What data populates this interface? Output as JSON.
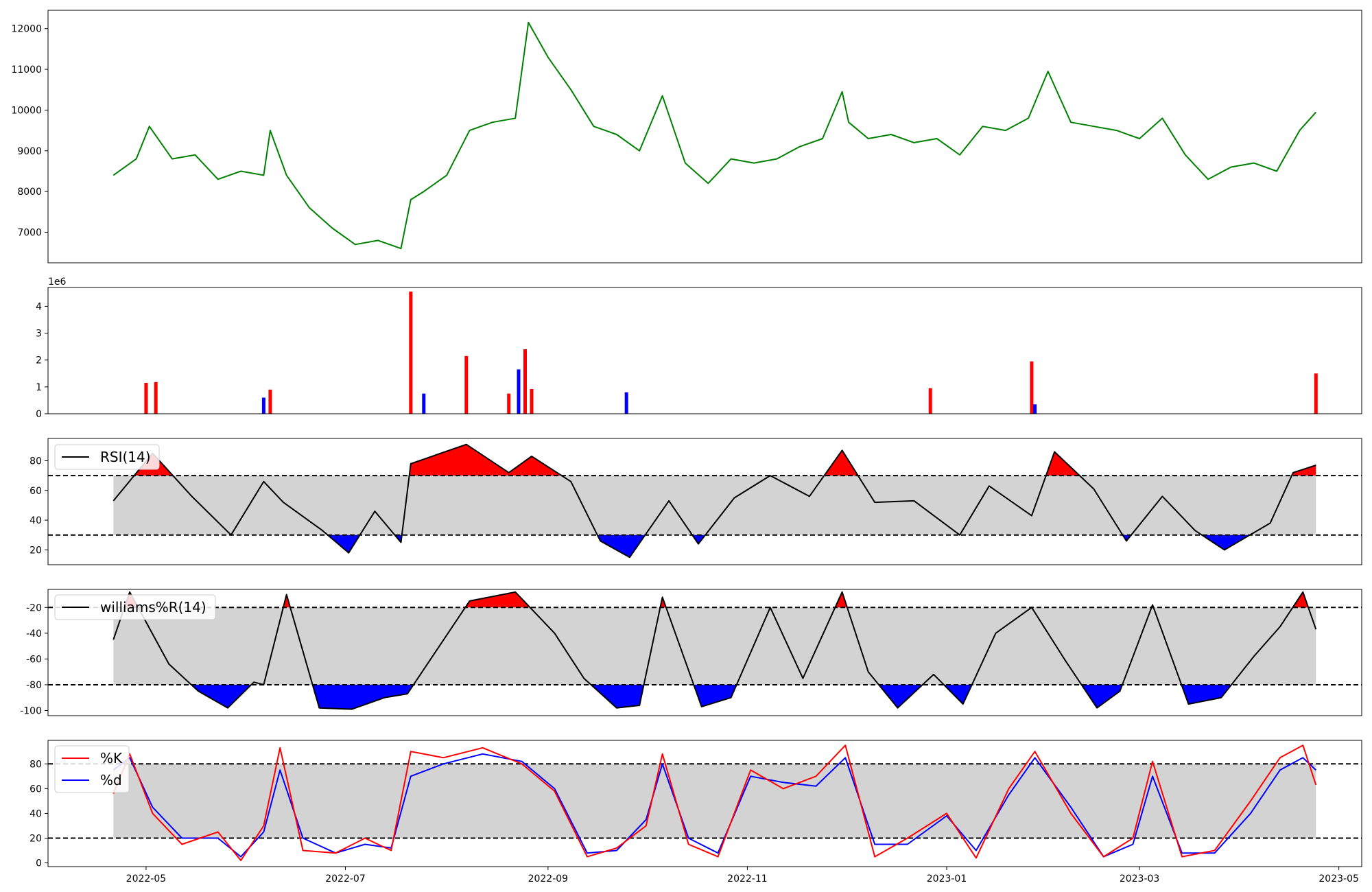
{
  "chart_data": [
    {
      "type": "line",
      "panel": "price",
      "color": "#008000",
      "ylim": [
        6250,
        12450
      ],
      "yticks": [
        "7000",
        "8000",
        "9000",
        "10000",
        "11000",
        "12000"
      ],
      "x": [
        "2022-04-21",
        "2022-04-28",
        "2022-05-02",
        "2022-05-09",
        "2022-05-16",
        "2022-05-23",
        "2022-05-30",
        "2022-06-06",
        "2022-06-08",
        "2022-06-13",
        "2022-06-20",
        "2022-06-27",
        "2022-07-04",
        "2022-07-11",
        "2022-07-18",
        "2022-07-21",
        "2022-07-25",
        "2022-08-01",
        "2022-08-08",
        "2022-08-15",
        "2022-08-22",
        "2022-08-26",
        "2022-09-01",
        "2022-09-08",
        "2022-09-15",
        "2022-09-22",
        "2022-09-29",
        "2022-10-06",
        "2022-10-13",
        "2022-10-20",
        "2022-10-27",
        "2022-11-03",
        "2022-11-10",
        "2022-11-17",
        "2022-11-24",
        "2022-11-30",
        "2022-12-02",
        "2022-12-08",
        "2022-12-15",
        "2022-12-22",
        "2022-12-29",
        "2023-01-05",
        "2023-01-12",
        "2023-01-19",
        "2023-01-26",
        "2023-02-01",
        "2023-02-08",
        "2023-02-15",
        "2023-02-22",
        "2023-03-01",
        "2023-03-08",
        "2023-03-15",
        "2023-03-22",
        "2023-03-29",
        "2023-04-05",
        "2023-04-12",
        "2023-04-19",
        "2023-04-24"
      ],
      "y": [
        8400,
        8800,
        9600,
        8800,
        8900,
        8300,
        8500,
        8400,
        9500,
        8400,
        7600,
        7100,
        6700,
        6800,
        6600,
        7800,
        8000,
        8400,
        9500,
        9700,
        9800,
        12150,
        11300,
        10500,
        9600,
        9400,
        9000,
        10350,
        8700,
        8200,
        8800,
        8700,
        8800,
        9100,
        9300,
        10450,
        9700,
        9300,
        9400,
        9200,
        9300,
        8900,
        9600,
        9500,
        9800,
        10950,
        9700,
        9600,
        9500,
        9300,
        9800,
        8900,
        8300,
        8600,
        8700,
        8500,
        9500,
        9950
      ]
    },
    {
      "type": "bar",
      "panel": "volume",
      "multiplier_label": "1e6",
      "ylim": [
        0,
        4.7
      ],
      "yticks": [
        "0",
        "1",
        "2",
        "3",
        "4"
      ],
      "x": [
        "2022-05-01",
        "2022-05-04",
        "2022-06-06",
        "2022-06-08",
        "2022-07-21",
        "2022-07-25",
        "2022-08-07",
        "2022-08-20",
        "2022-08-23",
        "2022-08-25",
        "2022-08-27",
        "2022-09-25",
        "2022-12-27",
        "2023-01-27",
        "2023-01-28",
        "2023-04-24"
      ],
      "values": [
        1.15,
        1.18,
        0.6,
        0.9,
        4.55,
        0.75,
        2.15,
        0.75,
        1.65,
        2.4,
        0.92,
        0.8,
        0.95,
        1.95,
        0.35,
        1.5
      ],
      "up_color": "#ff0000",
      "down_color": "#0000ff"
    },
    {
      "type": "line",
      "panel": "rsi",
      "legend": [
        "RSI(14)"
      ],
      "ylim": [
        10,
        95
      ],
      "yticks": [
        "20",
        "40",
        "60",
        "80"
      ],
      "thresholds": [
        30,
        70
      ],
      "band_color": "#d3d3d3",
      "overbought_color": "#ff0000",
      "oversold_color": "#0000ff",
      "x": [
        "2022-04-21",
        "2022-05-03",
        "2022-05-15",
        "2022-05-27",
        "2022-06-06",
        "2022-06-12",
        "2022-06-24",
        "2022-07-02",
        "2022-07-10",
        "2022-07-18",
        "2022-07-21",
        "2022-08-07",
        "2022-08-20",
        "2022-08-27",
        "2022-09-08",
        "2022-09-17",
        "2022-09-26",
        "2022-10-08",
        "2022-10-17",
        "2022-10-28",
        "2022-11-08",
        "2022-11-20",
        "2022-11-30",
        "2022-12-10",
        "2022-12-22",
        "2023-01-05",
        "2023-01-14",
        "2023-01-27",
        "2023-02-03",
        "2023-02-15",
        "2023-02-25",
        "2023-03-08",
        "2023-03-18",
        "2023-03-27",
        "2023-04-10",
        "2023-04-17",
        "2023-04-24"
      ],
      "y": [
        53,
        85,
        56,
        30,
        66,
        52,
        33,
        18,
        46,
        25,
        78,
        91,
        72,
        83,
        66,
        26,
        15,
        53,
        24,
        55,
        70,
        56,
        87,
        52,
        53,
        30,
        63,
        43,
        86,
        61,
        26,
        56,
        33,
        20,
        38,
        72,
        77
      ]
    },
    {
      "type": "line",
      "panel": "williams",
      "legend": [
        "williams%R(14)"
      ],
      "ylim": [
        -104,
        -6
      ],
      "yticks": [
        "-20",
        "-40",
        "-60",
        "-80",
        "-100"
      ],
      "thresholds": [
        -20,
        -80
      ],
      "band_color": "#d3d3d3",
      "overbought_color": "#ff0000",
      "oversold_color": "#0000ff",
      "x": [
        "2022-04-21",
        "2022-04-26",
        "2022-05-08",
        "2022-05-17",
        "2022-05-26",
        "2022-06-03",
        "2022-06-06",
        "2022-06-13",
        "2022-06-23",
        "2022-07-03",
        "2022-07-13",
        "2022-07-20",
        "2022-08-08",
        "2022-08-22",
        "2022-09-03",
        "2022-09-12",
        "2022-09-22",
        "2022-09-29",
        "2022-10-06",
        "2022-10-18",
        "2022-10-27",
        "2022-11-08",
        "2022-11-18",
        "2022-11-30",
        "2022-12-08",
        "2022-12-17",
        "2022-12-28",
        "2023-01-06",
        "2023-01-16",
        "2023-01-27",
        "2023-02-06",
        "2023-02-16",
        "2023-02-23",
        "2023-03-05",
        "2023-03-16",
        "2023-03-26",
        "2023-04-05",
        "2023-04-13",
        "2023-04-20",
        "2023-04-24"
      ],
      "y": [
        -45,
        -8,
        -64,
        -85,
        -98,
        -78,
        -80,
        -10,
        -98,
        -99,
        -90,
        -87,
        -15,
        -8,
        -40,
        -75,
        -98,
        -96,
        -12,
        -97,
        -90,
        -20,
        -75,
        -8,
        -70,
        -98,
        -72,
        -95,
        -40,
        -20,
        -60,
        -98,
        -85,
        -18,
        -95,
        -90,
        -58,
        -35,
        -8,
        -37
      ]
    },
    {
      "type": "line",
      "panel": "stochastic",
      "legend": [
        "%K",
        "%d"
      ],
      "ylim": [
        -3,
        99
      ],
      "yticks": [
        "0",
        "20",
        "40",
        "60",
        "80"
      ],
      "thresholds": [
        20,
        80
      ],
      "band_color": "#d3d3d3",
      "x": [
        "2022-04-21",
        "2022-04-26",
        "2022-05-03",
        "2022-05-12",
        "2022-05-23",
        "2022-05-30",
        "2022-06-06",
        "2022-06-11",
        "2022-06-18",
        "2022-06-28",
        "2022-07-07",
        "2022-07-15",
        "2022-07-21",
        "2022-07-31",
        "2022-08-12",
        "2022-08-24",
        "2022-09-03",
        "2022-09-13",
        "2022-09-22",
        "2022-10-01",
        "2022-10-06",
        "2022-10-14",
        "2022-10-23",
        "2022-11-02",
        "2022-11-12",
        "2022-11-22",
        "2022-12-01",
        "2022-12-10",
        "2022-12-20",
        "2023-01-01",
        "2023-01-10",
        "2023-01-20",
        "2023-01-28",
        "2023-02-08",
        "2023-02-18",
        "2023-02-27",
        "2023-03-05",
        "2023-03-14",
        "2023-03-24",
        "2023-04-04",
        "2023-04-13",
        "2023-04-20",
        "2023-04-24"
      ],
      "k": [
        56,
        88,
        40,
        15,
        25,
        2,
        30,
        93,
        10,
        8,
        20,
        10,
        90,
        85,
        93,
        80,
        58,
        5,
        12,
        30,
        88,
        15,
        5,
        75,
        60,
        70,
        95,
        5,
        20,
        40,
        4,
        60,
        90,
        40,
        5,
        20,
        82,
        5,
        10,
        50,
        85,
        95,
        63
      ],
      "d": [
        75,
        85,
        45,
        20,
        20,
        5,
        25,
        75,
        20,
        8,
        15,
        12,
        70,
        80,
        88,
        82,
        60,
        8,
        10,
        35,
        80,
        20,
        8,
        70,
        65,
        62,
        85,
        15,
        15,
        38,
        10,
        55,
        85,
        45,
        5,
        15,
        70,
        8,
        8,
        40,
        75,
        85,
        75
      ],
      "k_color": "#ff0000",
      "d_color": "#0000ff"
    }
  ],
  "x_axis": {
    "tick_labels": [
      "2022-05",
      "2022-07",
      "2022-09",
      "2022-11",
      "2023-01",
      "2023-03",
      "2023-05"
    ],
    "tick_dates": [
      "2022-05-01",
      "2022-07-01",
      "2022-09-01",
      "2022-11-01",
      "2023-01-01",
      "2023-03-01",
      "2023-05-01"
    ],
    "xlim": [
      "2022-04-01",
      "2023-05-08"
    ]
  }
}
